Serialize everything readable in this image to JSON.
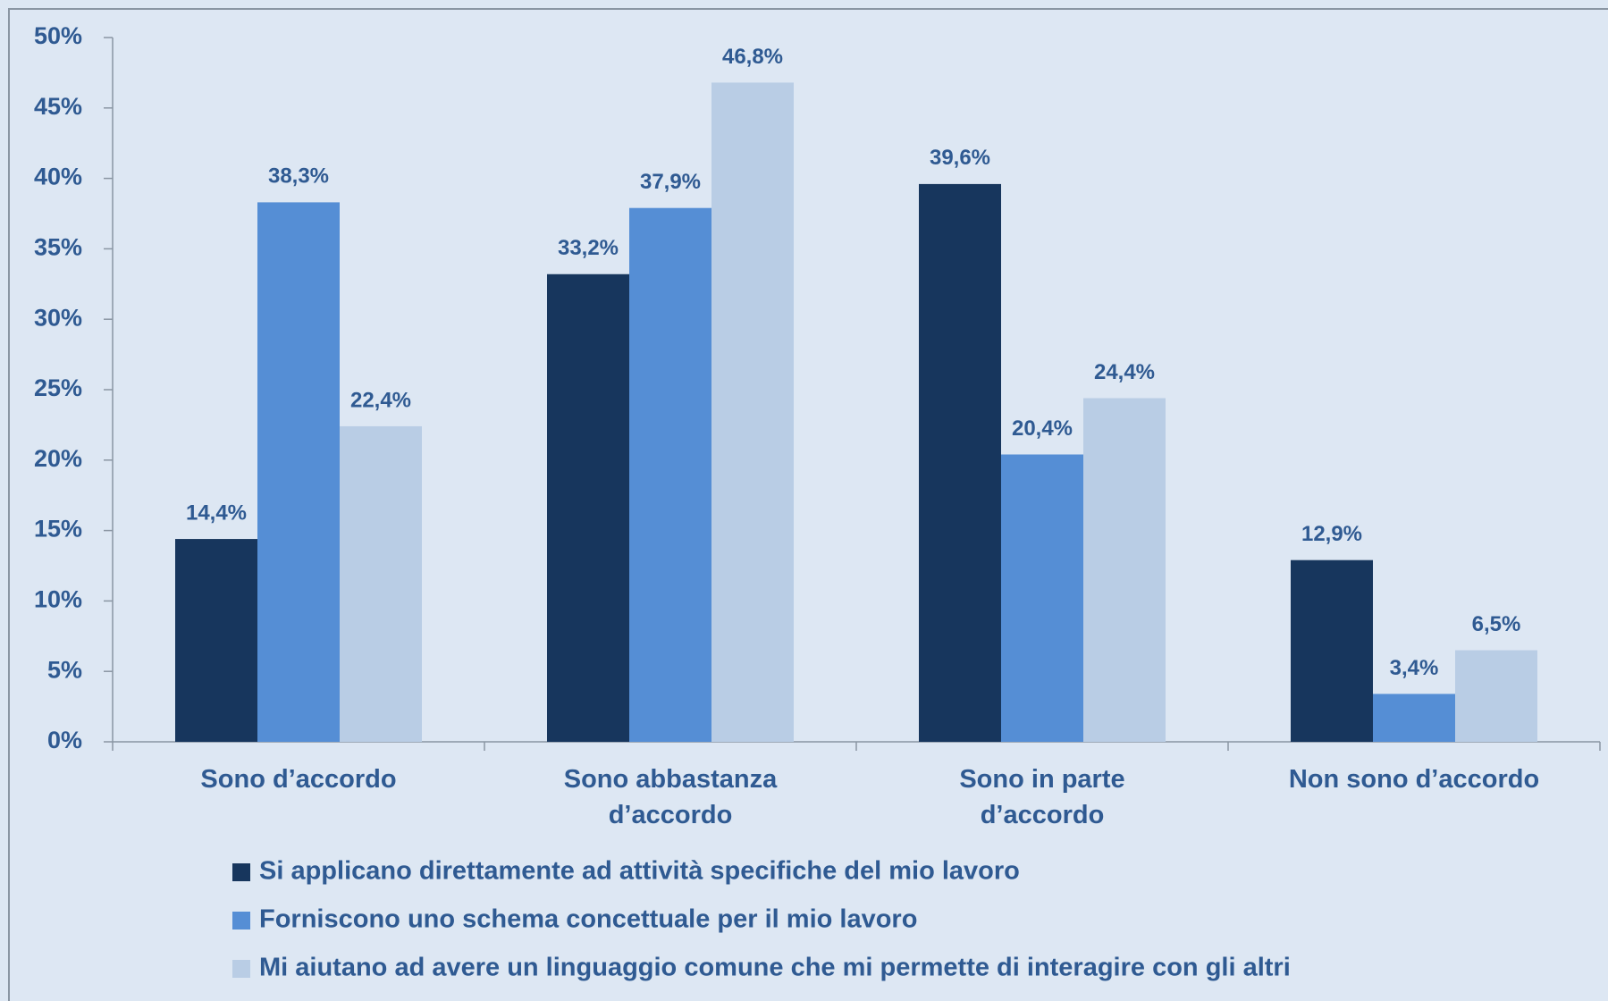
{
  "chart_data": {
    "type": "bar",
    "categories": [
      "Sono d’accordo",
      "Sono abbastanza d’accordo",
      "Sono in parte d’accordo",
      "Non sono d’accordo"
    ],
    "series": [
      {
        "name": "Si applicano direttamente ad attività specifiche del mio lavoro",
        "color": "#17365d",
        "values": [
          14.4,
          33.2,
          39.6,
          12.9
        ],
        "value_labels": [
          "14,4%",
          "33,2%",
          "39,6%",
          "12,9%"
        ]
      },
      {
        "name": "Forniscono uno schema concettuale per il mio lavoro",
        "color": "#558ed5",
        "values": [
          38.3,
          37.9,
          20.4,
          3.4
        ],
        "value_labels": [
          "38,3%",
          "37,9%",
          "20,4%",
          "3,4%"
        ]
      },
      {
        "name": "Mi aiutano ad avere un linguaggio comune che mi permette di interagire con gli altri",
        "color": "#b9cde5",
        "values": [
          22.4,
          46.8,
          24.4,
          6.5
        ],
        "value_labels": [
          "22,4%",
          "46,8%",
          "24,4%",
          "6,5%"
        ]
      }
    ],
    "ylim": [
      0,
      50
    ],
    "yticks": [
      {
        "value": 0,
        "label": "0%"
      },
      {
        "value": 5,
        "label": "5%"
      },
      {
        "value": 10,
        "label": "10%"
      },
      {
        "value": 15,
        "label": "15%"
      },
      {
        "value": 20,
        "label": "20%"
      },
      {
        "value": 25,
        "label": "25%"
      },
      {
        "value": 30,
        "label": "30%"
      },
      {
        "value": 35,
        "label": "35%"
      },
      {
        "value": 40,
        "label": "40%"
      },
      {
        "value": 45,
        "label": "45%"
      },
      {
        "value": 50,
        "label": "50%"
      }
    ],
    "grid": false,
    "legend": "bottom"
  }
}
